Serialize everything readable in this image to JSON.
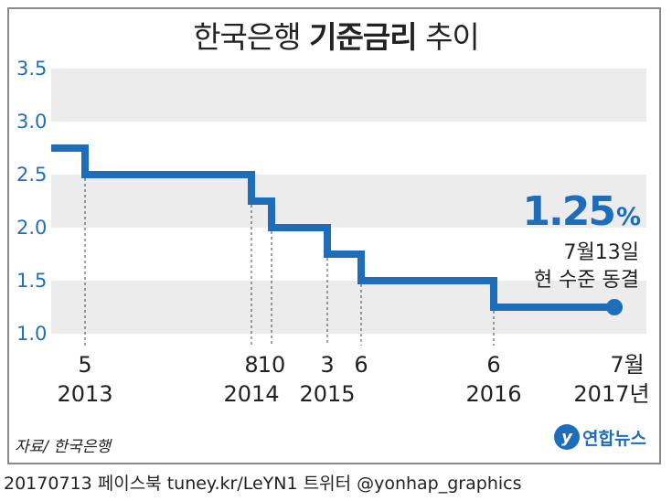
{
  "title": {
    "normal_prefix": "한국은행 ",
    "bold": "기준금리",
    "normal_suffix": " 추이"
  },
  "chart_data": {
    "type": "line",
    "step": true,
    "title": "한국은행 기준금리 추이",
    "ylim": [
      1.0,
      3.5
    ],
    "yticks": [
      "3.5",
      "3.0",
      "2.5",
      "2.0",
      "1.5",
      "1.0"
    ],
    "series": [
      {
        "points": [
          {
            "x": "2013-01",
            "y": 2.75
          },
          {
            "x": "2013-05",
            "y": 2.5
          },
          {
            "x": "2014-08",
            "y": 2.25
          },
          {
            "x": "2014-10",
            "y": 2.0
          },
          {
            "x": "2015-03",
            "y": 1.75
          },
          {
            "x": "2015-06",
            "y": 1.5
          },
          {
            "x": "2016-06",
            "y": 1.25
          },
          {
            "x": "2017-07",
            "y": 1.25
          }
        ]
      }
    ],
    "x_labels": [
      {
        "month": "5",
        "year": "2013",
        "date": "2013-05"
      },
      {
        "month": "8",
        "year": "2014",
        "date": "2014-08"
      },
      {
        "month": "10",
        "year": "",
        "date": "2014-10"
      },
      {
        "month": "3",
        "year": "2015",
        "date": "2015-03"
      },
      {
        "month": "6",
        "year": "",
        "date": "2015-06"
      },
      {
        "month": "6",
        "year": "2016",
        "date": "2016-06"
      },
      {
        "month": "7월",
        "year": "2017년",
        "date": "2017-07"
      }
    ],
    "colors": {
      "line": "#1e6dbb",
      "band": "#ececec",
      "tick": "#1f6fbf"
    }
  },
  "callout": {
    "value": "1.25",
    "unit": "%",
    "line1": "7월13일",
    "line2": "현 수준 동결"
  },
  "source": "자료/ 한국은행",
  "logo": {
    "mark": "y",
    "text": "연합뉴스"
  },
  "footer": "20170713 페이스북 tuney.kr/LeYN1 트위터 @yonhap_graphics"
}
